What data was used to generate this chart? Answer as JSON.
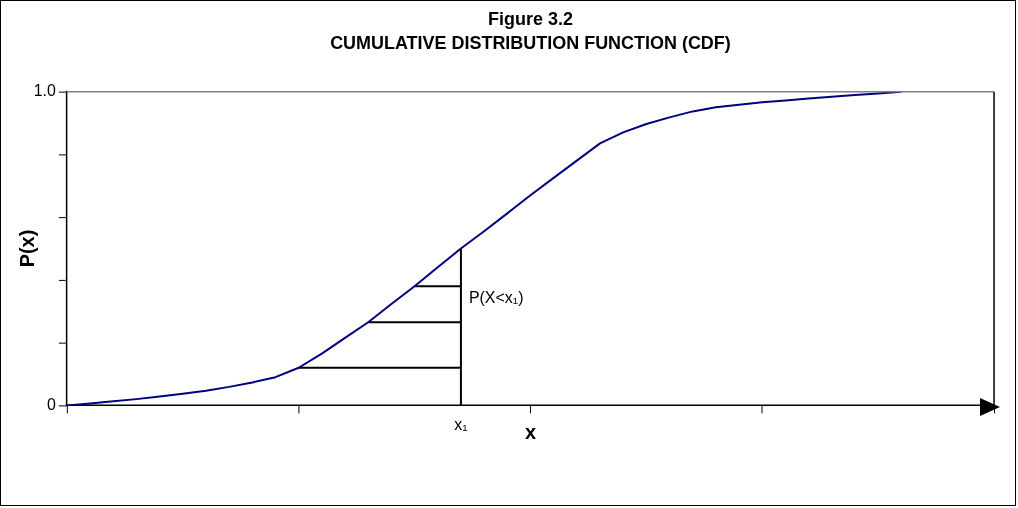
{
  "chart_data": {
    "type": "line",
    "title": "Figure 3.2",
    "subtitle": "CUMULATIVE DISTRIBUTION FUNCTION (CDF)",
    "xlabel": "x",
    "ylabel": "P(x)",
    "categories": [
      null,
      null,
      null,
      null,
      null,
      null,
      null,
      null,
      null,
      null,
      null,
      null,
      null,
      null,
      null,
      null,
      null,
      "x₁",
      null,
      null,
      null,
      null,
      null,
      null,
      null,
      null,
      null,
      null,
      null,
      null,
      null,
      null,
      null,
      null,
      null,
      null,
      null,
      null,
      null,
      null,
      null
    ],
    "ylim": [
      0,
      1
    ],
    "yticks": [
      {
        "value": 0,
        "label": "0"
      },
      {
        "value": 0.2,
        "label": null
      },
      {
        "value": 0.4,
        "label": null
      },
      {
        "value": 0.6,
        "label": null
      },
      {
        "value": 0.8,
        "label": null
      },
      {
        "value": 1,
        "label": "1.0"
      }
    ],
    "grid": false,
    "legend": false,
    "marker": "none",
    "line_style": "solid",
    "ref_lines": [
      {
        "axis": "x",
        "value": "x₁",
        "color": "#000000"
      }
    ],
    "annotations": [
      {
        "text": "P(X<x₁)",
        "x": "x₁",
        "y": 0.34
      }
    ],
    "series": [
      {
        "color": "#000080",
        "values": [
          0,
          0.006,
          0.013,
          0.02,
          0.028,
          0.037,
          0.047,
          0.059,
          0.073,
          0.09,
          0.12,
          0.165,
          0.215,
          0.265,
          0.323,
          0.38,
          0.44,
          0.5,
          0.555,
          0.612,
          0.67,
          0.725,
          0.78,
          0.835,
          0.87,
          0.897,
          0.918,
          0.937,
          0.95,
          0.958,
          0.966,
          0.972,
          0.978,
          0.984,
          0.989,
          0.994,
          1.0,
          null,
          null,
          null,
          null
        ]
      },
      {
        "color": "#000000",
        "values": [
          null,
          null,
          null,
          null,
          null,
          null,
          null,
          null,
          null,
          null,
          null,
          null,
          null,
          null,
          null,
          0.38,
          0.38,
          0.38,
          null,
          null,
          null,
          null,
          null,
          null,
          null,
          null,
          null,
          null,
          null,
          null,
          null,
          null,
          null,
          null,
          null,
          null,
          null,
          null,
          null,
          null,
          null
        ]
      },
      {
        "color": "#000000",
        "values": [
          null,
          null,
          null,
          null,
          null,
          null,
          null,
          null,
          null,
          null,
          null,
          null,
          null,
          0.265,
          0.265,
          0.265,
          0.265,
          0.265,
          null,
          null,
          null,
          null,
          null,
          null,
          null,
          null,
          null,
          null,
          null,
          null,
          null,
          null,
          null,
          null,
          null,
          null,
          null,
          null,
          null,
          null,
          null
        ]
      },
      {
        "color": "#000000",
        "values": [
          null,
          null,
          null,
          null,
          null,
          null,
          null,
          null,
          null,
          null,
          0.12,
          0.12,
          0.12,
          0.12,
          0.12,
          0.12,
          0.12,
          0.12,
          null,
          null,
          null,
          null,
          null,
          null,
          null,
          null,
          null,
          null,
          null,
          null,
          null,
          null,
          null,
          null,
          null,
          null,
          null,
          null,
          null,
          null,
          null
        ]
      }
    ]
  }
}
